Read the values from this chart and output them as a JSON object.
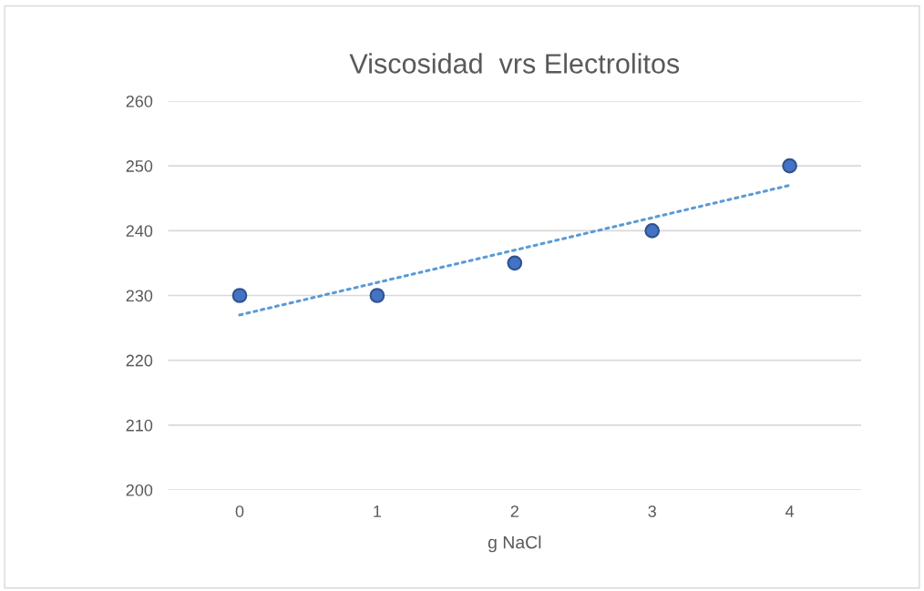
{
  "chart_data": {
    "type": "scatter",
    "title": "Viscosidad  vrs Electrolitos",
    "xlabel": "g NaCl",
    "categories": [
      "0",
      "1",
      "2",
      "3",
      "4"
    ],
    "series": [
      {
        "color": "#4472c4",
        "values": [
          230,
          230,
          235,
          240,
          250
        ],
        "marker": "circle"
      },
      {
        "type": "line",
        "color": "#5b9bd5",
        "values": [
          227,
          232,
          237,
          242,
          247
        ],
        "marker": "none",
        "line_style": "dotted"
      }
    ],
    "ylim": [
      200,
      260
    ],
    "yticks": [
      200,
      210,
      220,
      230,
      240,
      250,
      260
    ],
    "grid": "y"
  }
}
